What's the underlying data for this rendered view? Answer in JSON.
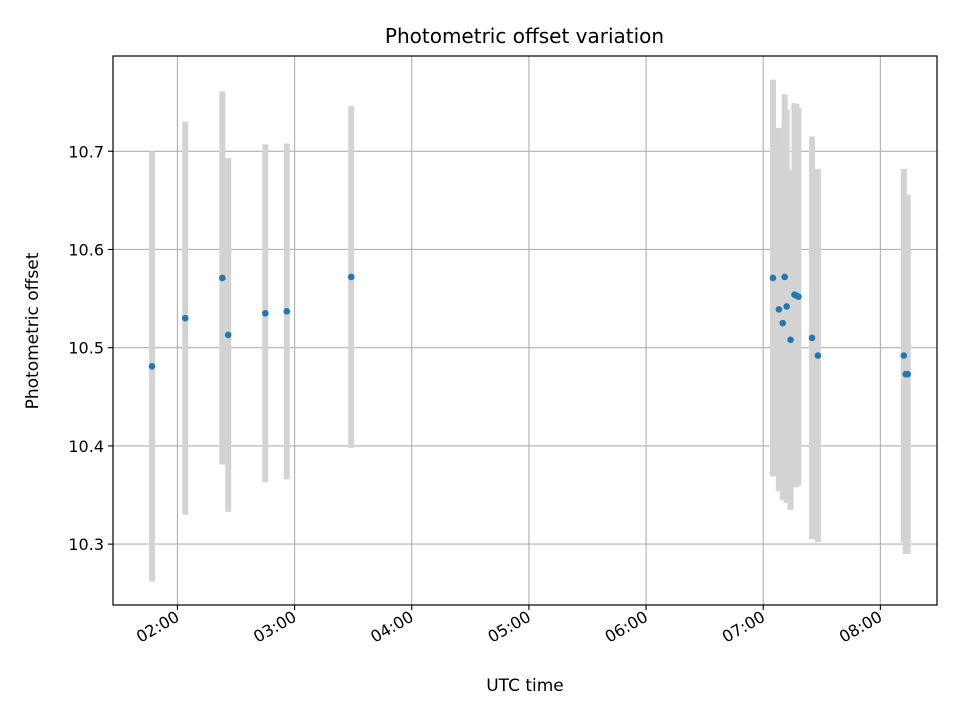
{
  "chart_data": {
    "type": "scatter",
    "title": "Photometric offset variation",
    "xlabel": "UTC time",
    "ylabel": "Photometric offset",
    "grid": true,
    "x_ticks": [
      "02:00",
      "03:00",
      "04:00",
      "05:00",
      "06:00",
      "07:00",
      "08:00"
    ],
    "y_ticks": [
      "10.3",
      "10.4",
      "10.5",
      "10.6",
      "10.7"
    ],
    "xlim": [
      "01:27",
      "08:29"
    ],
    "ylim": [
      10.238,
      10.797
    ],
    "colors": {
      "marker": "#1f77b4",
      "errorbar": "#d3d3d3",
      "grid": "#b0b0b0"
    },
    "series": [
      {
        "x": [
          "01:47",
          "02:04",
          "02:23",
          "02:26",
          "02:45",
          "02:56",
          "03:29",
          "07:05",
          "07:08",
          "07:10",
          "07:11",
          "07:12",
          "07:14",
          "07:16",
          "07:17",
          "07:18",
          "07:25",
          "07:28",
          "08:12",
          "08:13",
          "08:14"
        ],
        "y": [
          10.481,
          10.53,
          10.571,
          10.513,
          10.535,
          10.537,
          10.572,
          10.571,
          10.539,
          10.525,
          10.572,
          10.542,
          10.508,
          10.554,
          10.553,
          10.552,
          10.51,
          10.492,
          10.492,
          10.473,
          10.473
        ],
        "yerr": [
          0.219,
          0.2,
          0.19,
          0.18,
          0.172,
          0.171,
          0.174,
          0.202,
          0.185,
          0.18,
          0.186,
          0.2,
          0.173,
          0.195,
          0.195,
          0.192,
          0.205,
          0.19,
          0.19,
          0.183,
          0.183
        ]
      }
    ]
  }
}
